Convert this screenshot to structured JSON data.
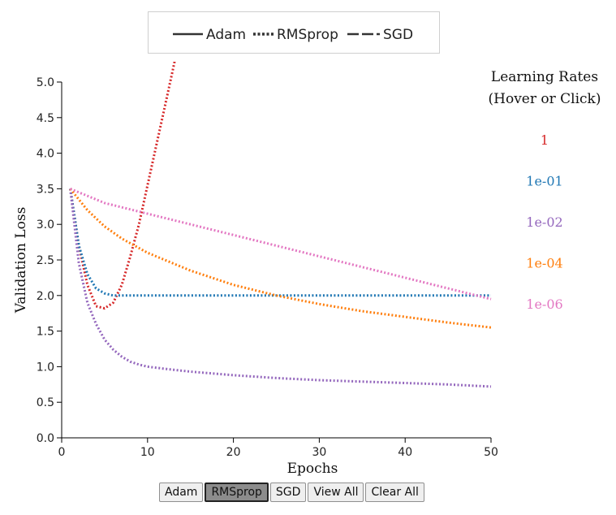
{
  "legend": {
    "optimizers": [
      {
        "name": "Adam",
        "dash": "solid"
      },
      {
        "name": "RMSprop",
        "dash": "dotted"
      },
      {
        "name": "SGD",
        "dash": "dashed"
      }
    ]
  },
  "learning_rates": {
    "title_line1": "Learning Rates",
    "title_line2": "(Hover or Click)",
    "items": [
      {
        "label": "1",
        "color": "#d62728"
      },
      {
        "label": "1e-01",
        "color": "#1f77b4"
      },
      {
        "label": "1e-02",
        "color": "#9467bd"
      },
      {
        "label": "1e-04",
        "color": "#ff7f0e"
      },
      {
        "label": "1e-06",
        "color": "#e377c2"
      }
    ]
  },
  "buttons": {
    "adam": "Adam",
    "rmsprop": "RMSprop",
    "sgd": "SGD",
    "view_all": "View All",
    "clear_all": "Clear All",
    "active": "RMSprop"
  },
  "chart_data": {
    "type": "line",
    "xlabel": "Epochs",
    "ylabel": "Validation Loss",
    "xlim": [
      0,
      50
    ],
    "ylim": [
      0,
      5
    ],
    "xticks": [
      0,
      10,
      20,
      30,
      40,
      50
    ],
    "yticks": [
      "0.0",
      "0.5",
      "1.0",
      "1.5",
      "2.0",
      "2.5",
      "3.0",
      "3.5",
      "4.0",
      "4.5",
      "5.0"
    ],
    "series": [
      {
        "name": "1",
        "optimizer": "RMSprop",
        "color": "#d62728",
        "x": [
          1,
          2,
          3,
          4,
          5,
          6,
          7,
          8,
          9,
          10,
          11,
          12,
          13,
          13.5
        ],
        "y": [
          3.5,
          2.7,
          2.15,
          1.85,
          1.82,
          1.9,
          2.15,
          2.55,
          3.0,
          3.55,
          4.1,
          4.65,
          5.2,
          5.5
        ]
      },
      {
        "name": "1e-01",
        "optimizer": "RMSprop",
        "color": "#1f77b4",
        "x": [
          1,
          2,
          3,
          4,
          5,
          6,
          8,
          10,
          20,
          30,
          40,
          50
        ],
        "y": [
          3.5,
          2.7,
          2.3,
          2.1,
          2.03,
          2.0,
          2.0,
          2.0,
          2.0,
          2.0,
          2.0,
          2.0
        ]
      },
      {
        "name": "1e-02",
        "optimizer": "RMSprop",
        "color": "#9467bd",
        "x": [
          1,
          2,
          3,
          4,
          5,
          6,
          7,
          8,
          9,
          10,
          12,
          15,
          20,
          25,
          30,
          35,
          40,
          45,
          50
        ],
        "y": [
          3.5,
          2.45,
          1.9,
          1.6,
          1.38,
          1.24,
          1.14,
          1.07,
          1.03,
          1.0,
          0.97,
          0.93,
          0.88,
          0.84,
          0.81,
          0.79,
          0.77,
          0.75,
          0.72
        ]
      },
      {
        "name": "1e-04",
        "optimizer": "RMSprop",
        "color": "#ff7f0e",
        "x": [
          1,
          3,
          5,
          7,
          10,
          15,
          20,
          25,
          30,
          35,
          40,
          45,
          50
        ],
        "y": [
          3.5,
          3.2,
          2.97,
          2.8,
          2.6,
          2.35,
          2.15,
          2.0,
          1.88,
          1.78,
          1.7,
          1.62,
          1.55
        ]
      },
      {
        "name": "1e-06",
        "optimizer": "RMSprop",
        "color": "#e377c2",
        "x": [
          1,
          5,
          10,
          20,
          30,
          40,
          50
        ],
        "y": [
          3.5,
          3.3,
          3.15,
          2.85,
          2.55,
          2.25,
          1.95
        ]
      }
    ]
  }
}
